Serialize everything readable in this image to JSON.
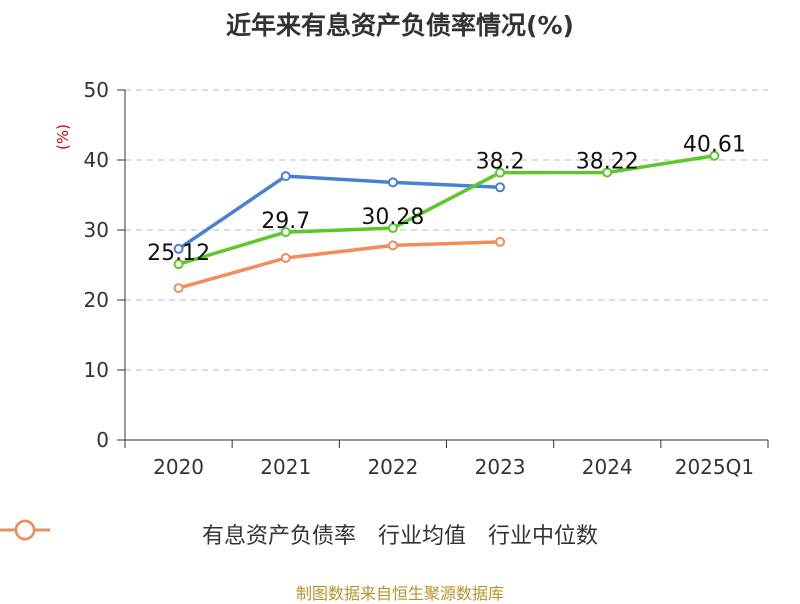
{
  "title": "近年来有息资产负债率情况(%)",
  "ylabel": "(%)",
  "source": "制图数据来自恒生聚源数据库",
  "chart_data": {
    "type": "line",
    "categories": [
      "2020",
      "2021",
      "2022",
      "2023",
      "2024",
      "2025Q1"
    ],
    "ylim": [
      0,
      50
    ],
    "yticks": [
      0,
      10,
      20,
      30,
      40,
      50
    ],
    "grid": true,
    "legend_position": "bottom",
    "series": [
      {
        "name": "有息资产负债率",
        "color": "#5cc72b",
        "values": [
          25.12,
          29.7,
          30.28,
          38.2,
          38.22,
          40.61
        ],
        "labels": [
          "25.12",
          "29.7",
          "30.28",
          "38.2",
          "38.22",
          "40.61"
        ]
      },
      {
        "name": "行业均值",
        "color": "#4a7fd6",
        "values": [
          27.3,
          37.7,
          36.8,
          36.1,
          null,
          null
        ]
      },
      {
        "name": "行业中位数",
        "color": "#f38c5a",
        "values": [
          21.7,
          26.0,
          27.8,
          28.3,
          null,
          null
        ]
      }
    ]
  }
}
